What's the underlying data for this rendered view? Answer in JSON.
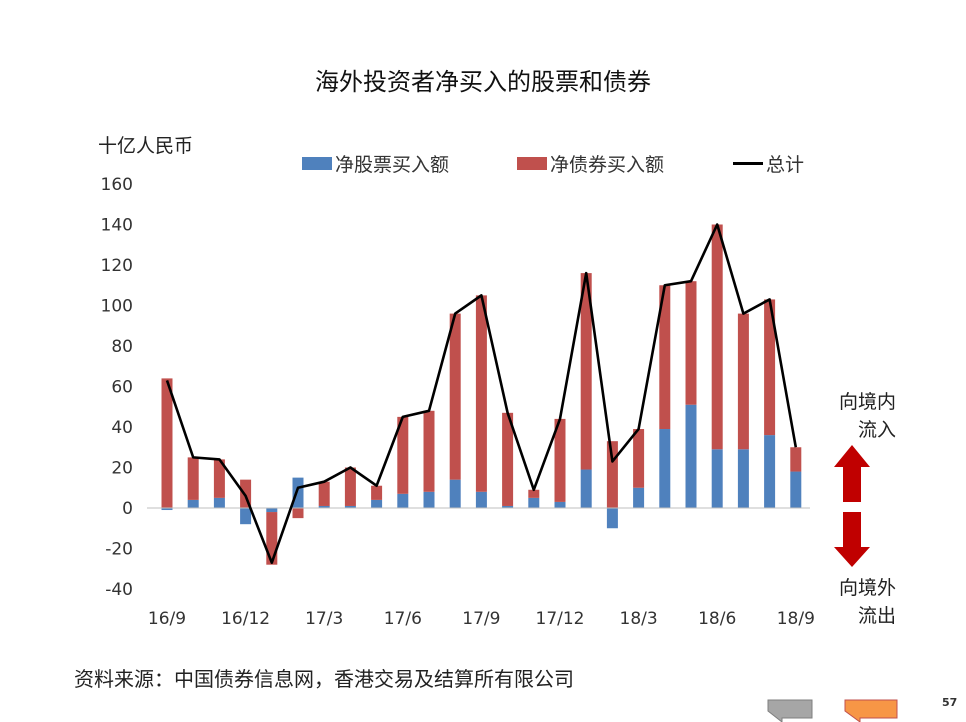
{
  "title": "海外投资者净买入的股票和债券",
  "unit_label": "十亿人民币",
  "legend": {
    "equity": "净股票买入额",
    "bond": "净债券买入额",
    "total": "总计"
  },
  "inflow_label": [
    "向境内",
    "流入"
  ],
  "outflow_label": [
    "向境外",
    "流出"
  ],
  "source": "资料来源：中国债券信息网，香港交易及结算所有限公司",
  "page_number": "57",
  "colors": {
    "equity": "#4F81BD",
    "bond": "#C0504D",
    "total": "#000000",
    "arrow": "#C00000",
    "nav_left": "#A6A6A6",
    "nav_right": "#F79646"
  },
  "chart_data": {
    "type": "bar",
    "stacked": true,
    "x_tick_labels": [
      "16/9",
      "16/12",
      "17/3",
      "17/6",
      "17/9",
      "17/12",
      "18/3",
      "18/6",
      "18/9"
    ],
    "categories": [
      "16/9",
      "16/10",
      "16/11",
      "16/12",
      "17/1",
      "17/2",
      "17/3",
      "17/4",
      "17/5",
      "17/6",
      "17/7",
      "17/8",
      "17/9",
      "17/10",
      "17/11",
      "17/12",
      "18/1",
      "18/2",
      "18/3",
      "18/4",
      "18/5",
      "18/6",
      "18/7",
      "18/8",
      "18/9"
    ],
    "series": [
      {
        "name": "净股票买入额",
        "type": "bar",
        "values": [
          -1,
          4,
          5,
          -8,
          -2,
          15,
          1,
          1,
          4,
          7,
          8,
          14,
          8,
          1,
          5,
          3,
          19,
          -10,
          10,
          39,
          51,
          29,
          29,
          36,
          18
        ]
      },
      {
        "name": "净债券买入额",
        "type": "bar",
        "values": [
          64,
          21,
          19,
          14,
          -26,
          -5,
          12,
          19,
          7,
          38,
          40,
          82,
          97,
          46,
          4,
          41,
          97,
          33,
          29,
          71,
          61,
          111,
          67,
          67,
          12
        ]
      },
      {
        "name": "总计",
        "type": "line",
        "values": [
          63,
          25,
          24,
          6,
          -27,
          10,
          13,
          20,
          11,
          45,
          48,
          96,
          105,
          47,
          9,
          44,
          116,
          23,
          39,
          110,
          112,
          140,
          96,
          103,
          30
        ]
      }
    ],
    "ylim": [
      -40,
      160
    ],
    "yticks": [
      -40,
      -20,
      0,
      20,
      40,
      60,
      80,
      100,
      120,
      140,
      160
    ],
    "ylabel": "十亿人民币",
    "legend_position": "top",
    "grid": false
  }
}
